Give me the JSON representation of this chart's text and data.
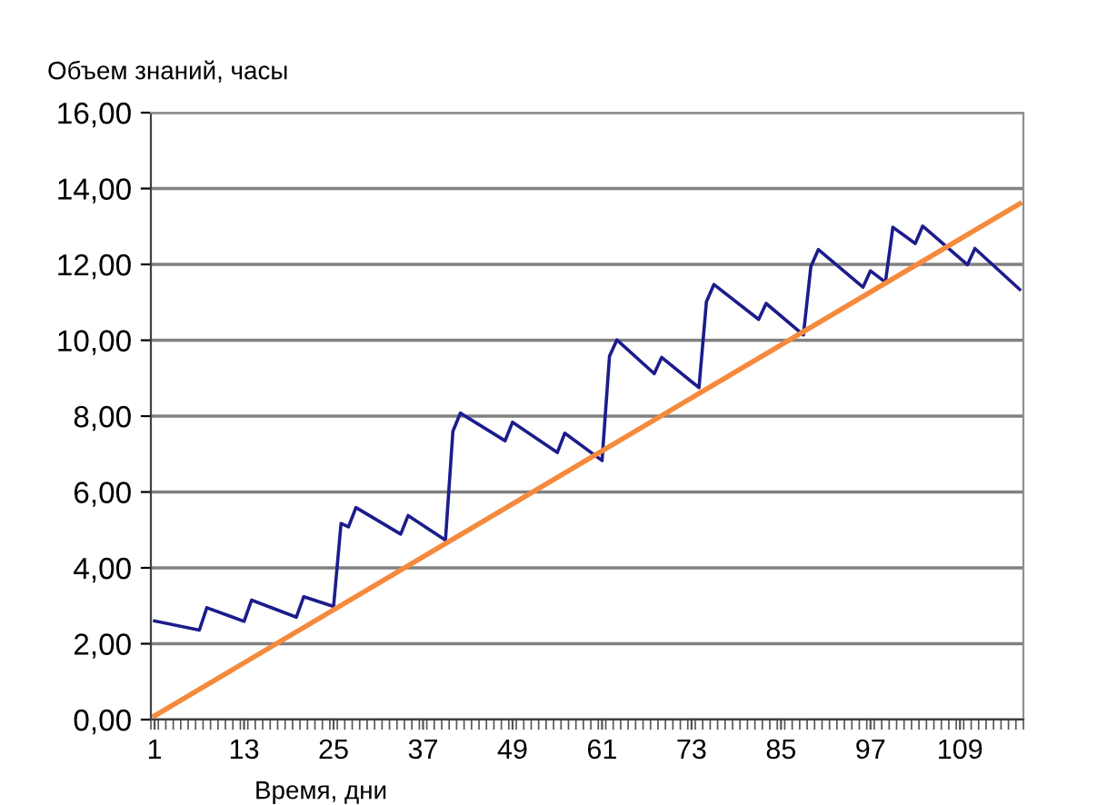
{
  "chart_data": {
    "type": "line",
    "ylabel": "Объем знаний, часы",
    "xlabel": "Время, дни",
    "xlim": [
      0.5,
      117.5
    ],
    "xticks": [
      1,
      13,
      25,
      37,
      49,
      61,
      73,
      85,
      97,
      109
    ],
    "ylim": [
      0,
      16
    ],
    "yticks": [
      {
        "value": 0,
        "label": "0,00"
      },
      {
        "value": 2,
        "label": "2,00"
      },
      {
        "value": 4,
        "label": "4,00"
      },
      {
        "value": 6,
        "label": "6,00"
      },
      {
        "value": 8,
        "label": "8,00"
      },
      {
        "value": 10,
        "label": "10,00"
      },
      {
        "value": 12,
        "label": "12,00"
      },
      {
        "value": 14,
        "label": "14,00"
      },
      {
        "value": 16,
        "label": "16,00"
      }
    ],
    "grid": "y",
    "marker": "none",
    "line_style": "solid",
    "series": [
      {
        "color": "#1c1c8c",
        "x": [
          1,
          7,
          8,
          13,
          14,
          20,
          21,
          25,
          26,
          27,
          28,
          34,
          35,
          40,
          41,
          42,
          48,
          49,
          55,
          56,
          61,
          62,
          63,
          68,
          69,
          74,
          75,
          76,
          82,
          83,
          88,
          89,
          90,
          96,
          97,
          99,
          100,
          103,
          104,
          110,
          111,
          117
        ],
        "values": [
          2.6,
          2.36,
          2.95,
          2.59,
          3.15,
          2.7,
          3.24,
          2.98,
          5.17,
          5.08,
          5.59,
          4.89,
          5.38,
          4.73,
          7.6,
          8.08,
          7.35,
          7.84,
          7.04,
          7.55,
          6.83,
          9.58,
          10.01,
          9.12,
          9.55,
          8.75,
          11.02,
          11.47,
          10.55,
          10.97,
          10.14,
          11.94,
          12.39,
          11.4,
          11.83,
          11.53,
          12.98,
          12.55,
          13.01,
          11.99,
          12.42,
          11.34
        ]
      },
      {
        "color": "#f58a3c",
        "x": [
          1,
          117
        ],
        "values": [
          0.1,
          13.6
        ]
      }
    ]
  }
}
